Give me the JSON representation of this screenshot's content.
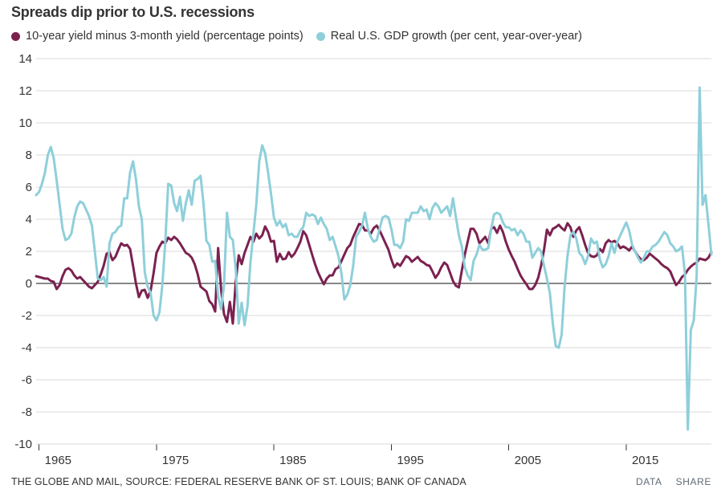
{
  "header": {
    "title": "Spreads dip prior to U.S. recessions"
  },
  "legend": {
    "items": [
      {
        "label": "10-year yield minus 3-month yield (percentage points)",
        "color": "#7b2150"
      },
      {
        "label": "Real U.S. GDP growth (per cent, year-over-year)",
        "color": "#8ecfda"
      }
    ]
  },
  "footer": {
    "source": "THE GLOBE AND MAIL, SOURCE: FEDERAL RESERVE BANK OF ST. LOUIS; BANK OF CANADA",
    "actions": [
      "DATA",
      "SHARE"
    ]
  },
  "colors": {
    "spread_line": "#7b2150",
    "gdp_line": "#8ecfda",
    "grid": "#d8d8d8",
    "zero_line": "#111111",
    "text": "#333333",
    "action_links": "#5f6b76"
  },
  "chart_data": {
    "type": "line",
    "title": "Spreads dip prior to U.S. recessions",
    "x_start": 1964.75,
    "x_step": 0.25,
    "xlim": [
      1964.75,
      2022.25
    ],
    "ylim": [
      -10,
      14
    ],
    "y_tick_step": 2,
    "x_ticks": [
      1965,
      1975,
      1985,
      1995,
      2005,
      2015
    ],
    "grid": true,
    "zero_line": true,
    "legend_position": "top-left",
    "series": [
      {
        "name": "10-year yield minus 3-month yield (percentage points)",
        "color": "#7b2150",
        "line_width": 3,
        "values": [
          0.45,
          0.4,
          0.35,
          0.3,
          0.3,
          0.15,
          0.1,
          -0.35,
          -0.1,
          0.45,
          0.85,
          0.95,
          0.8,
          0.5,
          0.3,
          0.4,
          0.2,
          0.0,
          -0.2,
          -0.3,
          -0.1,
          0.1,
          0.55,
          1.1,
          1.85,
          1.95,
          1.45,
          1.65,
          2.1,
          2.5,
          2.35,
          2.4,
          2.15,
          1.1,
          0.0,
          -0.85,
          -0.45,
          -0.4,
          -0.9,
          -0.45,
          0.65,
          1.9,
          2.3,
          2.6,
          2.5,
          2.85,
          2.7,
          2.9,
          2.75,
          2.5,
          2.2,
          1.9,
          1.8,
          1.6,
          1.2,
          0.6,
          -0.2,
          -0.35,
          -0.5,
          -1.1,
          -1.3,
          -1.75,
          2.2,
          -0.4,
          -1.9,
          -2.4,
          -1.15,
          -2.5,
          0.1,
          1.75,
          1.2,
          1.9,
          2.4,
          2.9,
          2.6,
          3.1,
          2.8,
          3.0,
          3.55,
          3.2,
          2.6,
          2.65,
          1.35,
          1.85,
          1.5,
          1.55,
          1.95,
          1.65,
          1.85,
          2.2,
          2.6,
          3.25,
          3.0,
          2.4,
          1.8,
          1.2,
          0.7,
          0.3,
          -0.05,
          0.3,
          0.5,
          0.5,
          0.9,
          1.0,
          1.4,
          1.8,
          2.2,
          2.4,
          2.9,
          3.3,
          3.7,
          3.65,
          3.3,
          3.3,
          3.1,
          3.45,
          3.6,
          3.3,
          2.9,
          2.5,
          2.1,
          1.5,
          1.0,
          1.25,
          1.1,
          1.4,
          1.7,
          1.6,
          1.35,
          1.5,
          1.65,
          1.4,
          1.3,
          1.15,
          1.1,
          0.75,
          0.35,
          0.6,
          1.0,
          1.3,
          1.15,
          0.65,
          0.15,
          -0.15,
          -0.25,
          0.8,
          1.8,
          2.6,
          3.4,
          3.4,
          3.1,
          2.5,
          2.7,
          2.9,
          2.5,
          3.4,
          3.5,
          3.15,
          3.6,
          3.2,
          2.6,
          2.1,
          1.7,
          1.35,
          0.9,
          0.5,
          0.2,
          -0.05,
          -0.35,
          -0.35,
          -0.1,
          0.35,
          1.1,
          2.1,
          3.35,
          3.0,
          3.4,
          3.5,
          3.65,
          3.45,
          3.3,
          3.75,
          3.5,
          2.9,
          3.3,
          3.5,
          3.0,
          2.4,
          1.9,
          1.7,
          1.65,
          1.75,
          2.15,
          1.95,
          2.5,
          2.7,
          2.55,
          2.65,
          2.5,
          2.2,
          2.3,
          2.2,
          2.05,
          2.3,
          2.0,
          1.7,
          1.5,
          1.45,
          1.6,
          1.85,
          1.7,
          1.55,
          1.4,
          1.2,
          1.05,
          0.95,
          0.75,
          0.3,
          -0.1,
          0.1,
          0.4,
          0.55,
          0.85,
          1.05,
          1.2,
          1.3,
          1.55,
          1.5,
          1.45,
          1.6,
          1.95
        ]
      },
      {
        "name": "Real U.S. GDP growth (per cent, year-over-year)",
        "color": "#8ecfda",
        "line_width": 3,
        "values": [
          5.5,
          5.7,
          6.2,
          6.9,
          8.0,
          8.5,
          7.8,
          6.4,
          4.9,
          3.4,
          2.7,
          2.8,
          3.1,
          4.1,
          4.8,
          5.1,
          5.0,
          4.6,
          4.2,
          3.6,
          2.0,
          0.3,
          0.2,
          0.4,
          -0.2,
          2.5,
          3.1,
          3.2,
          3.5,
          3.6,
          5.3,
          5.3,
          6.9,
          7.6,
          6.5,
          4.8,
          4.0,
          0.7,
          -0.2,
          -0.6,
          -2.0,
          -2.3,
          -1.8,
          -0.1,
          2.6,
          6.2,
          6.1,
          5.0,
          4.5,
          5.4,
          3.9,
          5.0,
          5.8,
          4.9,
          6.4,
          6.5,
          6.7,
          5.0,
          2.65,
          2.4,
          1.35,
          1.4,
          -0.8,
          -1.6,
          -0.1,
          4.4,
          2.9,
          2.7,
          0.9,
          -2.5,
          -1.2,
          -2.6,
          -1.4,
          1.3,
          3.1,
          4.9,
          7.6,
          8.6,
          8.1,
          6.9,
          5.6,
          4.1,
          3.6,
          3.9,
          3.5,
          3.7,
          3.0,
          3.1,
          2.9,
          2.9,
          3.3,
          3.5,
          4.4,
          4.2,
          4.3,
          4.2,
          3.7,
          4.1,
          3.7,
          3.4,
          2.7,
          2.9,
          2.3,
          1.7,
          0.6,
          -1.0,
          -0.7,
          -0.1,
          1.1,
          2.9,
          3.2,
          3.6,
          4.4,
          3.4,
          2.9,
          2.6,
          2.7,
          3.4,
          4.1,
          4.2,
          4.1,
          3.4,
          2.4,
          2.4,
          2.2,
          2.6,
          4.0,
          3.9,
          4.4,
          4.4,
          4.4,
          4.8,
          4.5,
          4.6,
          4.0,
          4.7,
          5.0,
          4.8,
          4.4,
          4.6,
          4.8,
          4.2,
          5.3,
          4.1,
          3.0,
          2.3,
          1.0,
          0.5,
          0.2,
          1.4,
          1.8,
          2.4,
          2.1,
          2.1,
          2.2,
          3.4,
          4.3,
          4.4,
          4.3,
          3.8,
          3.5,
          3.5,
          3.3,
          3.4,
          3.0,
          3.3,
          3.1,
          2.6,
          2.6,
          1.6,
          1.9,
          2.2,
          2.0,
          1.1,
          0.3,
          -0.6,
          -2.5,
          -3.9,
          -4.0,
          -3.2,
          -0.2,
          1.7,
          3.0,
          3.2,
          2.8,
          1.9,
          1.7,
          1.2,
          1.7,
          2.8,
          2.5,
          2.6,
          1.5,
          1.0,
          1.2,
          1.7,
          2.5,
          1.9,
          2.6,
          3.0,
          3.4,
          3.8,
          3.3,
          2.4,
          2.0,
          1.6,
          1.3,
          1.6,
          2.0,
          2.0,
          2.3,
          2.4,
          2.6,
          2.9,
          3.2,
          3.0,
          2.5,
          2.3,
          2.0,
          2.1,
          2.3,
          0.6,
          -9.1,
          -2.9,
          -2.3,
          0.5,
          12.2,
          4.9,
          5.5,
          3.7,
          1.8
        ]
      }
    ]
  }
}
